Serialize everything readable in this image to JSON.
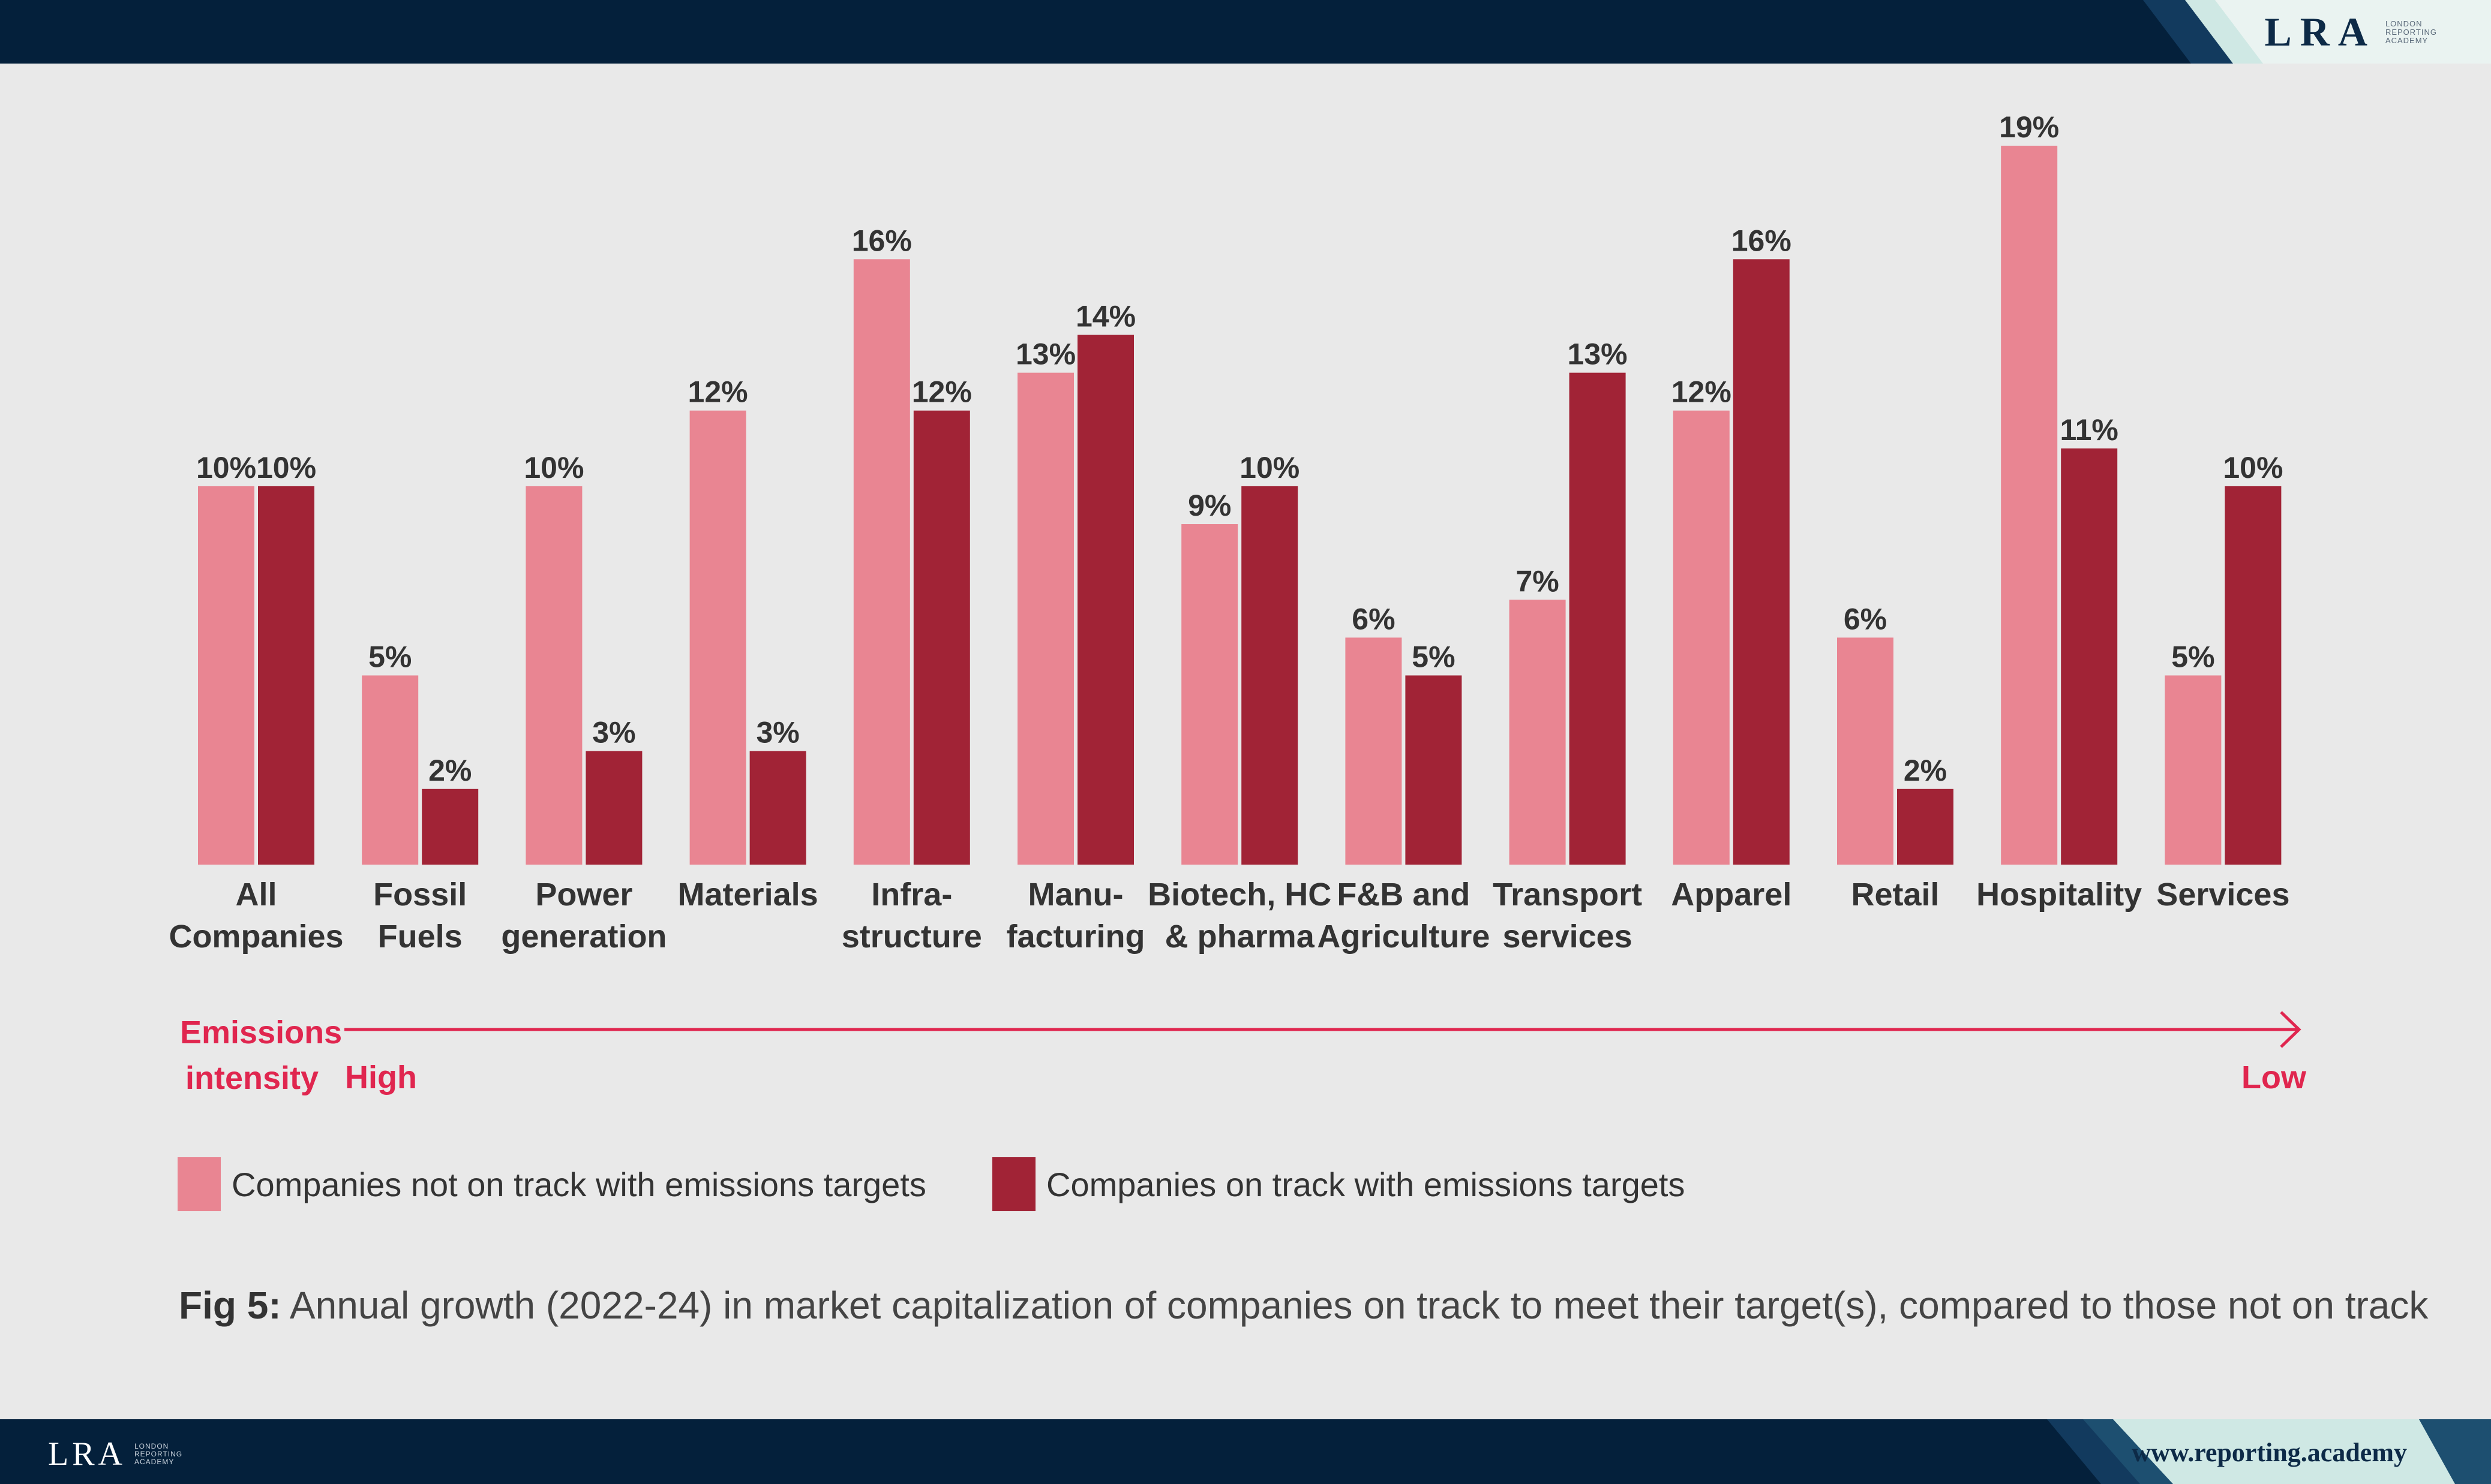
{
  "brand": {
    "logo_mark": "LRA",
    "logo_sub": [
      "LONDON",
      "REPORTING",
      "ACADEMY"
    ],
    "url": "www.reporting.academy",
    "colors": {
      "navy": "#04203b",
      "teal": "#cfe8e4"
    }
  },
  "chart_data": {
    "type": "bar",
    "title": "",
    "categories": [
      [
        "All",
        "Companies"
      ],
      [
        "Fossil",
        "Fuels"
      ],
      [
        "Power",
        "generation"
      ],
      [
        "Materials"
      ],
      [
        "Infra-",
        "structure"
      ],
      [
        "Manu-",
        "facturing"
      ],
      [
        "Biotech, HC",
        "& pharma"
      ],
      [
        "F&B and",
        "Agriculture"
      ],
      [
        "Transport",
        "services"
      ],
      [
        "Apparel"
      ],
      [
        "Retail"
      ],
      [
        "Hospitality"
      ],
      [
        "Services"
      ]
    ],
    "series": [
      {
        "name": "Companies not on track with emissions targets",
        "color": "#e98592",
        "values": [
          10,
          5,
          10,
          12,
          16,
          13,
          9,
          6,
          7,
          12,
          6,
          19,
          5
        ]
      },
      {
        "name": "Companies on track with emissions targets",
        "color": "#a12336",
        "values": [
          10,
          2,
          3,
          3,
          12,
          14,
          10,
          5,
          13,
          16,
          2,
          11,
          10
        ]
      }
    ],
    "value_suffix": "%",
    "ylim": [
      0,
      19
    ],
    "grid": false,
    "xlabel": "",
    "ylabel": ""
  },
  "emissions_axis": {
    "label_line1": "Emissions",
    "label_line2": "intensity",
    "high": "High",
    "low": "Low",
    "color": "#e0264f"
  },
  "caption": {
    "prefix": "Fig 5:",
    "text": " Annual growth (2022-24) in market capitalization of companies on track to meet their target(s), compared to those not on track"
  }
}
